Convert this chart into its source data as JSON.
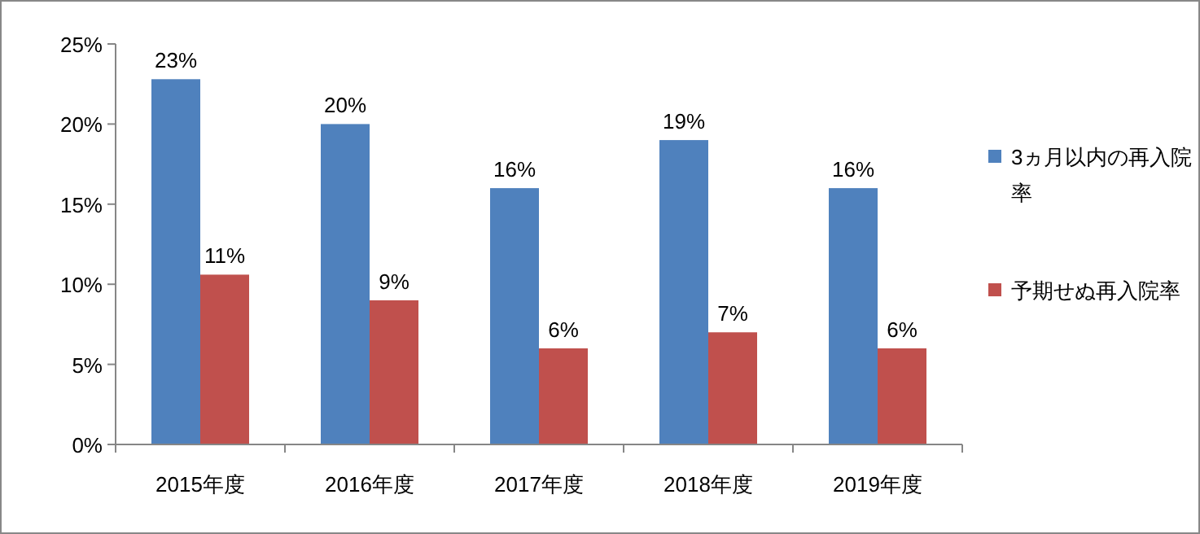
{
  "chart_data": {
    "type": "bar",
    "categories": [
      "2015年度",
      "2016年度",
      "2017年度",
      "2018年度",
      "2019年度"
    ],
    "series": [
      {
        "name": "3ヵ月以内の再入院率",
        "color": "#4f81bd",
        "values": [
          22.8,
          20,
          16,
          19,
          16
        ],
        "value_labels": [
          "23%",
          "20%",
          "16%",
          "19%",
          "16%"
        ]
      },
      {
        "name": "予期せぬ再入院率",
        "color": "#c0504d",
        "values": [
          10.6,
          9,
          6,
          7,
          6
        ],
        "value_labels": [
          "11%",
          "9%",
          "6%",
          "7%",
          "6%"
        ]
      }
    ],
    "ylim": [
      0,
      25
    ],
    "yticks": [
      {
        "value": 0,
        "label": "0%"
      },
      {
        "value": 5,
        "label": "5%"
      },
      {
        "value": 10,
        "label": "10%"
      },
      {
        "value": 15,
        "label": "15%"
      },
      {
        "value": 20,
        "label": "20%"
      },
      {
        "value": 25,
        "label": "25%"
      }
    ],
    "legend": "right"
  }
}
